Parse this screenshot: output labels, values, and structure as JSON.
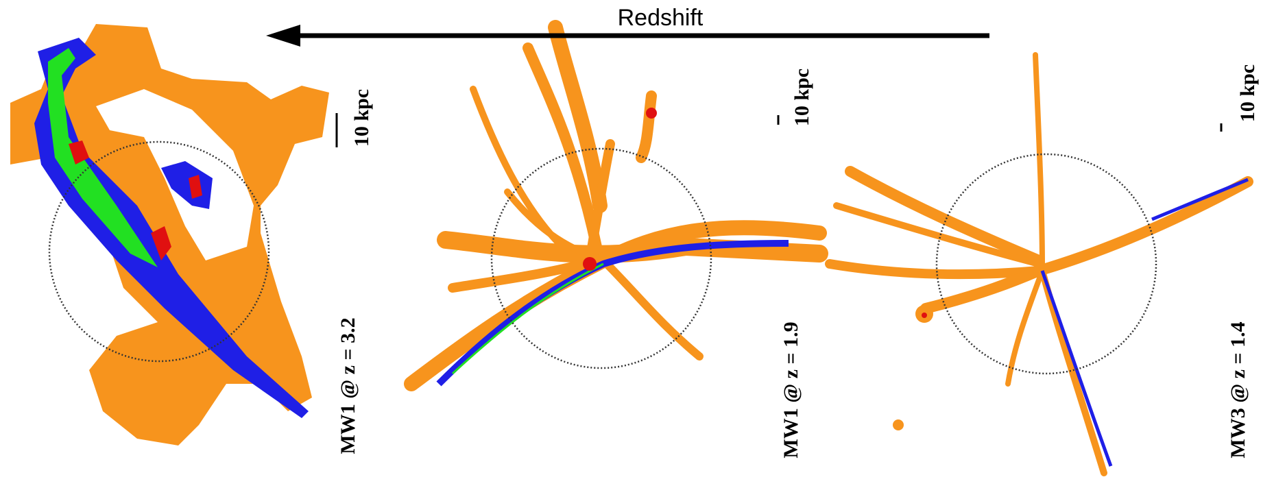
{
  "header": {
    "label": "Redshift"
  },
  "panels": [
    {
      "scale_bar": "10 kpc",
      "label": "MW1 @ z = 3.2"
    },
    {
      "scale_bar": "10 kpc",
      "label": "MW1 @ z = 1.9"
    },
    {
      "scale_bar": "10 kpc",
      "label": "MW3 @ z = 1.4"
    }
  ]
}
